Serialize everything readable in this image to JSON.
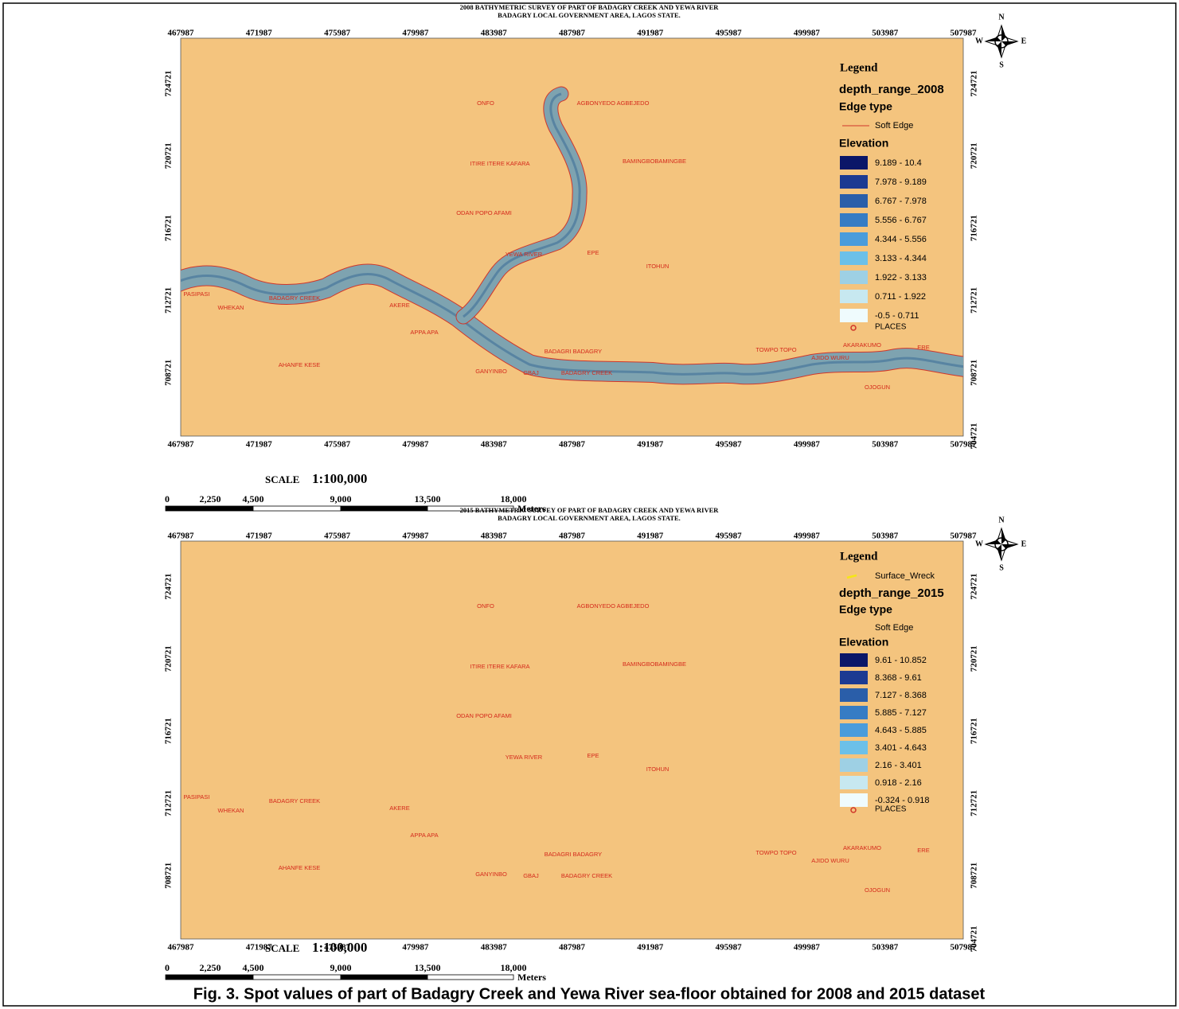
{
  "maps": [
    {
      "title_lines": [
        "2008 BATHYMETRIC SURVEY OF PART OF BADAGRY CREEK AND YEWA RIVER",
        "BADAGRY LOCAL GOVERNMENT AREA, LAGOS STATE."
      ],
      "x_ticks": [
        467987,
        471987,
        475987,
        479987,
        483987,
        487987,
        491987,
        495987,
        499987,
        503987,
        507987
      ],
      "y_ticks": [
        724721,
        720721,
        716721,
        712721,
        708721,
        704721
      ],
      "places": [
        "ONFO",
        "AGBONYEDO AGBEJEDO",
        "ITIRE ITERE KAFARA",
        "BAMINGBOBAMINGBE",
        "ODAN POPO AFAMI",
        "YEWA RIVER",
        "EPE",
        "ITOHUN",
        "PASIPASI",
        "WHEKAN",
        "BADAGRY CREEK",
        "AKERE",
        "APPA APA",
        "BADAGRI BADAGRY",
        "TOWPO TOPO",
        "AKARAKUMO",
        "ERE",
        "AJIDO WURU",
        "AHANFE KESE",
        "GANYINBO",
        "GBAJ",
        "BADAGRY CREEK",
        "OJOGUN"
      ],
      "legend": {
        "title": "Legend",
        "layer": "depth_range_2008",
        "edge_heading": "Edge type",
        "edge_label": "Soft Edge",
        "elevation_heading": "Elevation",
        "classes": [
          {
            "label": "9.189 - 10.4",
            "color": "#0b1668"
          },
          {
            "label": "7.978 - 9.189",
            "color": "#1c3a92"
          },
          {
            "label": "6.767 - 7.978",
            "color": "#2a5ea9"
          },
          {
            "label": "5.556 - 6.767",
            "color": "#367cc4"
          },
          {
            "label": "4.344 - 5.556",
            "color": "#4a9cdb"
          },
          {
            "label": "3.133 - 4.344",
            "color": "#6cc0e8"
          },
          {
            "label": "1.922 - 3.133",
            "color": "#9ed0e4"
          },
          {
            "label": "0.711 - 1.922",
            "color": "#c7e8f0"
          },
          {
            "label": "-0.5 - 0.711",
            "color": "#effbfd"
          }
        ],
        "places_label": "PLACES"
      },
      "scale": {
        "word": "SCALE",
        "ratio": "1:100,000",
        "ticks": [
          "0",
          "2,250",
          "4,500",
          "9,000",
          "13,500",
          "18,000"
        ],
        "unit": "Meters"
      },
      "compass": {
        "n": "N",
        "s": "S",
        "w": "W",
        "e": "E"
      }
    },
    {
      "title_lines": [
        "2015 BATHYMETRIC SURVEY OF PART OF BADAGRY CREEK AND YEWA RIVER",
        "BADAGRY LOCAL GOVERNMENT AREA, LAGOS STATE."
      ],
      "x_ticks": [
        467987,
        471987,
        475987,
        479987,
        483987,
        487987,
        491987,
        495987,
        499987,
        503987,
        507987
      ],
      "y_ticks": [
        724721,
        720721,
        716721,
        712721,
        708721,
        704721
      ],
      "places": [
        "ONFO",
        "AGBONYEDO AGBEJEDO",
        "ITIRE ITERE KAFARA",
        "BAMINGBOBAMINGBE",
        "ODAN POPO AFAMI",
        "YEWA RIVER",
        "EPE",
        "ITOHUN",
        "PASIPASI",
        "WHEKAN",
        "BADAGRY CREEK",
        "AKERE",
        "APPA APA",
        "BADAGRI BADAGRY",
        "TOWPO TOPO",
        "AKARAKUMO",
        "ERE",
        "AJIDO WURU",
        "AHANFE KESE",
        "GANYINBO",
        "GBAJ",
        "BADAGRY CREEK",
        "OJOGUN"
      ],
      "legend": {
        "title": "Legend",
        "wreck_label": "Surface_Wreck",
        "layer": "depth_range_2015",
        "edge_heading": "Edge type",
        "edge_label": "Soft Edge",
        "elevation_heading": "Elevation",
        "classes": [
          {
            "label": "9.61 - 10.852",
            "color": "#0b1668"
          },
          {
            "label": "8.368 - 9.61",
            "color": "#1c3a92"
          },
          {
            "label": "7.127 - 8.368",
            "color": "#2a5ea9"
          },
          {
            "label": "5.885 - 7.127",
            "color": "#367cc4"
          },
          {
            "label": "4.643 - 5.885",
            "color": "#4a9cdb"
          },
          {
            "label": "3.401 - 4.643",
            "color": "#6cc0e8"
          },
          {
            "label": "2.16 - 3.401",
            "color": "#9ed0e4"
          },
          {
            "label": "0.918 - 2.16",
            "color": "#c7e8f0"
          },
          {
            "label": "-0.324 - 0.918",
            "color": "#effbfd"
          }
        ],
        "places_label": "PLACES"
      },
      "scale": {
        "word": "SCALE",
        "ratio": "1:100,000",
        "ticks": [
          "0",
          "2,250",
          "4,500",
          "9,000",
          "13,500",
          "18,000"
        ],
        "unit": "Meters"
      },
      "compass": {
        "n": "N",
        "s": "S",
        "w": "W",
        "e": "E"
      }
    }
  ],
  "caption": "Fig. 3. Spot values of part of Badagry Creek and Yewa River sea-floor obtained for 2008 and 2015 dataset"
}
